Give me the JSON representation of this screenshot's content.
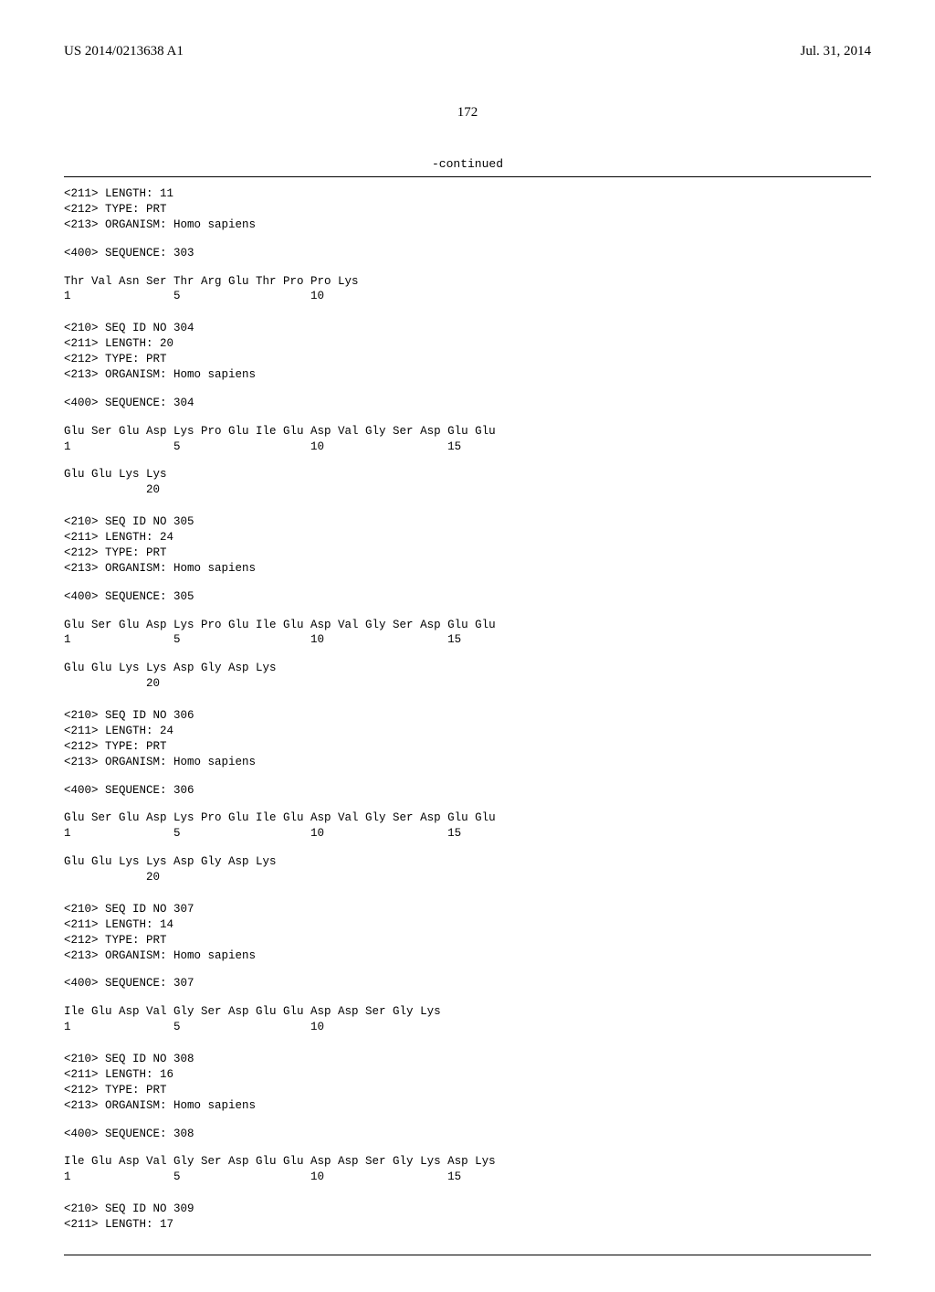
{
  "header": {
    "pub_number": "US 2014/0213638 A1",
    "pub_date": "Jul. 31, 2014"
  },
  "page_number": "172",
  "continued_label": "-continued",
  "sequences": [
    {
      "headers": [
        "<211> LENGTH: 11",
        "<212> TYPE: PRT",
        "<213> ORGANISM: Homo sapiens"
      ],
      "seq_line": "<400> SEQUENCE: 303",
      "residue_lines": [
        {
          "aa": "Thr Val Asn Ser Thr Arg Glu Thr Pro Pro Lys",
          "nm": "1               5                   10"
        }
      ]
    },
    {
      "headers": [
        "<210> SEQ ID NO 304",
        "<211> LENGTH: 20",
        "<212> TYPE: PRT",
        "<213> ORGANISM: Homo sapiens"
      ],
      "seq_line": "<400> SEQUENCE: 304",
      "residue_lines": [
        {
          "aa": "Glu Ser Glu Asp Lys Pro Glu Ile Glu Asp Val Gly Ser Asp Glu Glu",
          "nm": "1               5                   10                  15"
        },
        {
          "aa": "Glu Glu Lys Lys",
          "nm": "            20"
        }
      ]
    },
    {
      "headers": [
        "<210> SEQ ID NO 305",
        "<211> LENGTH: 24",
        "<212> TYPE: PRT",
        "<213> ORGANISM: Homo sapiens"
      ],
      "seq_line": "<400> SEQUENCE: 305",
      "residue_lines": [
        {
          "aa": "Glu Ser Glu Asp Lys Pro Glu Ile Glu Asp Val Gly Ser Asp Glu Glu",
          "nm": "1               5                   10                  15"
        },
        {
          "aa": "Glu Glu Lys Lys Asp Gly Asp Lys",
          "nm": "            20"
        }
      ]
    },
    {
      "headers": [
        "<210> SEQ ID NO 306",
        "<211> LENGTH: 24",
        "<212> TYPE: PRT",
        "<213> ORGANISM: Homo sapiens"
      ],
      "seq_line": "<400> SEQUENCE: 306",
      "residue_lines": [
        {
          "aa": "Glu Ser Glu Asp Lys Pro Glu Ile Glu Asp Val Gly Ser Asp Glu Glu",
          "nm": "1               5                   10                  15"
        },
        {
          "aa": "Glu Glu Lys Lys Asp Gly Asp Lys",
          "nm": "            20"
        }
      ]
    },
    {
      "headers": [
        "<210> SEQ ID NO 307",
        "<211> LENGTH: 14",
        "<212> TYPE: PRT",
        "<213> ORGANISM: Homo sapiens"
      ],
      "seq_line": "<400> SEQUENCE: 307",
      "residue_lines": [
        {
          "aa": "Ile Glu Asp Val Gly Ser Asp Glu Glu Asp Asp Ser Gly Lys",
          "nm": "1               5                   10"
        }
      ]
    },
    {
      "headers": [
        "<210> SEQ ID NO 308",
        "<211> LENGTH: 16",
        "<212> TYPE: PRT",
        "<213> ORGANISM: Homo sapiens"
      ],
      "seq_line": "<400> SEQUENCE: 308",
      "residue_lines": [
        {
          "aa": "Ile Glu Asp Val Gly Ser Asp Glu Glu Asp Asp Ser Gly Lys Asp Lys",
          "nm": "1               5                   10                  15"
        }
      ]
    },
    {
      "headers": [
        "<210> SEQ ID NO 309",
        "<211> LENGTH: 17"
      ],
      "seq_line": null,
      "residue_lines": []
    }
  ]
}
